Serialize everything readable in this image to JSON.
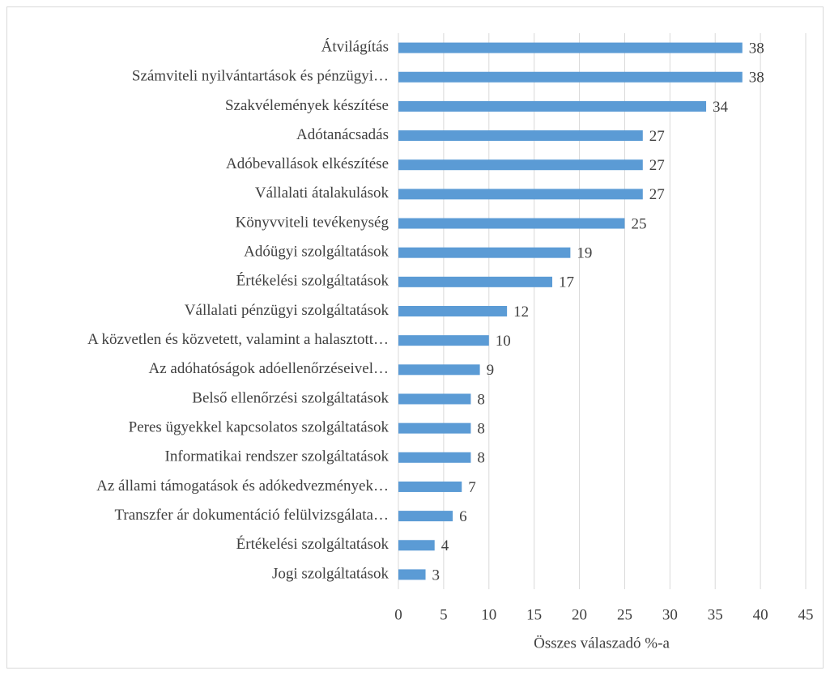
{
  "chart_data": {
    "type": "bar",
    "orientation": "horizontal",
    "x_label": "Összes válaszadó %-a",
    "categories": [
      "Átvilágítás",
      "Számviteli nyilvántartások és pénzügyi…",
      "Szakvélemények készítése",
      "Adótanácsadás",
      "Adóbevallások elkészítése",
      "Vállalati átalakulások",
      "Könyvviteli tevékenység",
      "Adóügyi szolgáltatások",
      "Értékelési szolgáltatások",
      "Vállalati pénzügyi szolgáltatások",
      "A közvetlen és közvetett, valamint a halasztott…",
      "Az adóhatóságok adóellenőrzéseivel…",
      "Belső ellenőrzési szolgáltatások",
      "Peres ügyekkel kapcsolatos szolgáltatások",
      "Informatikai rendszer szolgáltatások",
      "Az állami támogatások és adókedvezmények…",
      "Transzfer ár dokumentáció felülvizsgálata…",
      "Értékelési szolgáltatások",
      "Jogi szolgáltatások"
    ],
    "values": [
      38,
      38,
      34,
      27,
      27,
      27,
      25,
      19,
      17,
      12,
      10,
      9,
      8,
      8,
      8,
      7,
      6,
      4,
      3
    ],
    "color": "#5b9bd5",
    "xlim": [
      0,
      45
    ],
    "xticks": [
      0,
      5,
      10,
      15,
      20,
      25,
      30,
      35,
      40,
      45
    ],
    "grid": true
  }
}
